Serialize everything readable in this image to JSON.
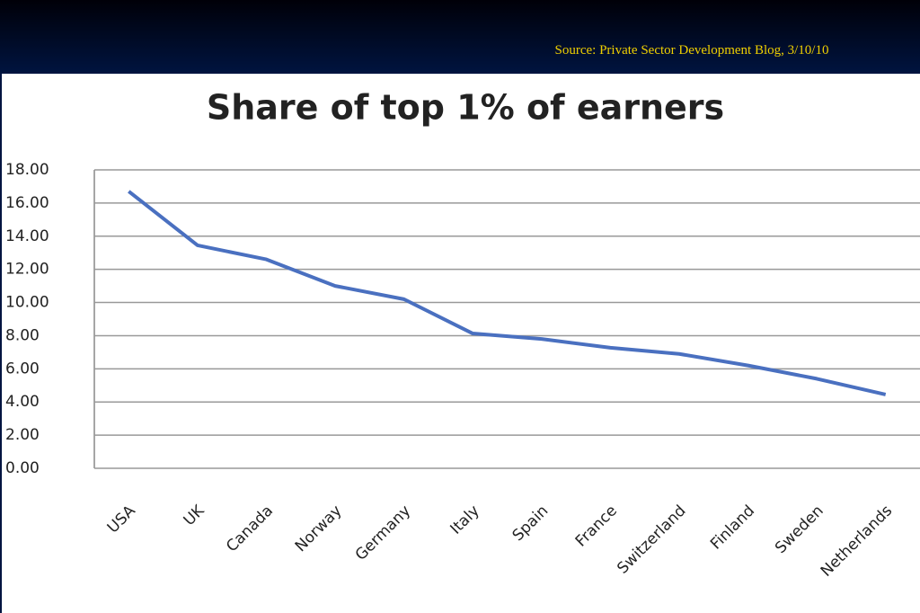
{
  "source": "Source: Private Sector Development Blog, 3/10/10",
  "chart_data": {
    "type": "line",
    "title": "Share of top 1% of earners",
    "categories": [
      "USA",
      "UK",
      "Canada",
      "Norway",
      "Germany",
      "Italy",
      "Spain",
      "France",
      "Switzerland",
      "Finland",
      "Sweden",
      "Netherlands"
    ],
    "values": [
      16.7,
      13.45,
      12.6,
      11.0,
      10.2,
      8.13,
      7.8,
      7.27,
      6.9,
      6.2,
      5.4,
      4.45
    ],
    "color": "#4a70c0",
    "ylim": [
      0,
      18
    ],
    "yticks": [
      {
        "value": 0,
        "label": "0.00"
      },
      {
        "value": 2,
        "label": "2.00"
      },
      {
        "value": 4,
        "label": "4.00"
      },
      {
        "value": 6,
        "label": "6.00"
      },
      {
        "value": 8,
        "label": "8.00"
      },
      {
        "value": 10,
        "label": "10.00"
      },
      {
        "value": 12,
        "label": "12.00"
      },
      {
        "value": 14,
        "label": "14.00"
      },
      {
        "value": 16,
        "label": "16.00"
      },
      {
        "value": 18,
        "label": "18.00"
      }
    ],
    "grid": true
  }
}
